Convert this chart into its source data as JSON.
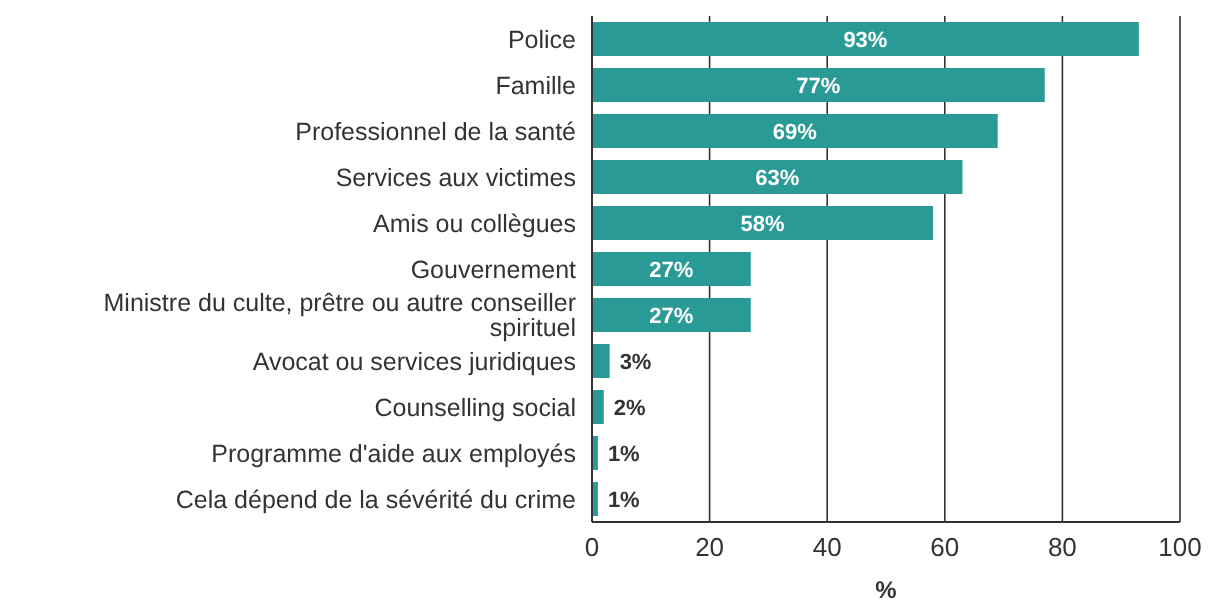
{
  "chart_data": {
    "type": "bar",
    "orientation": "horizontal",
    "xlabel": "%",
    "categories": [
      "Police",
      "Famille",
      "Professionnel de la santé",
      "Services aux victimes",
      "Amis ou collègues",
      "Gouvernement",
      "Ministre du culte, prêtre ou autre conseiller spirituel",
      "Avocat ou services juridiques",
      "Counselling social",
      "Programme d'aide aux employés",
      "Cela dépend de la sévérité du crime"
    ],
    "values": [
      93,
      77,
      69,
      63,
      58,
      27,
      27,
      3,
      2,
      1,
      1
    ],
    "value_labels": [
      "93%",
      "77%",
      "69%",
      "63%",
      "58%",
      "27%",
      "27%",
      "3%",
      "2%",
      "1%",
      "1%"
    ],
    "color": "#2a9a96",
    "xlim": [
      0,
      100
    ],
    "xticks": [
      0,
      20,
      40,
      60,
      80,
      100
    ],
    "grid": "x"
  }
}
